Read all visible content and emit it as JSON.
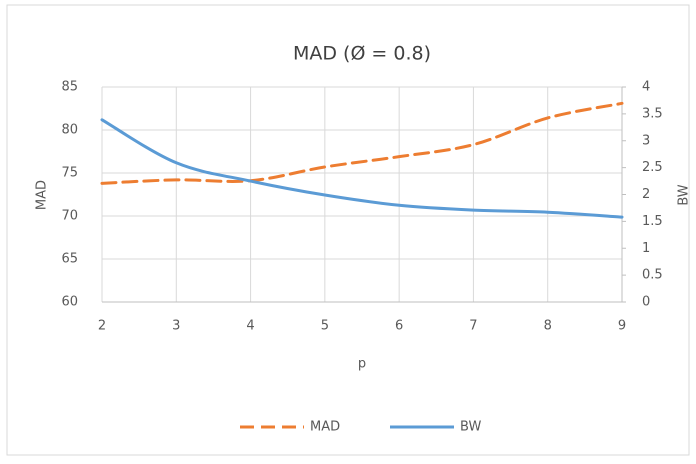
{
  "chart_data": {
    "type": "line",
    "title": "MAD (Ø = 0.8)",
    "x_label": "p",
    "y_label": "MAD",
    "y2_label": "BW",
    "x": [
      2,
      3,
      4,
      5,
      6,
      7,
      8,
      9
    ],
    "xlim": [
      2,
      9
    ],
    "xticks": [
      2,
      3,
      4,
      5,
      6,
      7,
      8,
      9
    ],
    "ylim": [
      60,
      85
    ],
    "yticks": [
      60,
      65,
      70,
      75,
      80,
      85
    ],
    "y2lim": [
      0,
      4
    ],
    "y2ticks": [
      0,
      0.5,
      1,
      1.5,
      2,
      2.5,
      3,
      3.5,
      4
    ],
    "grid": true,
    "legend": "bottom",
    "series": [
      {
        "name": "MAD",
        "color": "#ed7d31",
        "dashed": true,
        "values": [
          73.8,
          74.2,
          74.1,
          75.7,
          76.9,
          78.3,
          81.4,
          83.1
        ]
      },
      {
        "name": "BW",
        "color": "#5b9bd5",
        "dashed": false,
        "axis": "y2",
        "values": [
          3.39,
          2.59,
          2.25,
          1.99,
          1.8,
          1.71,
          1.67,
          1.58
        ]
      }
    ]
  }
}
